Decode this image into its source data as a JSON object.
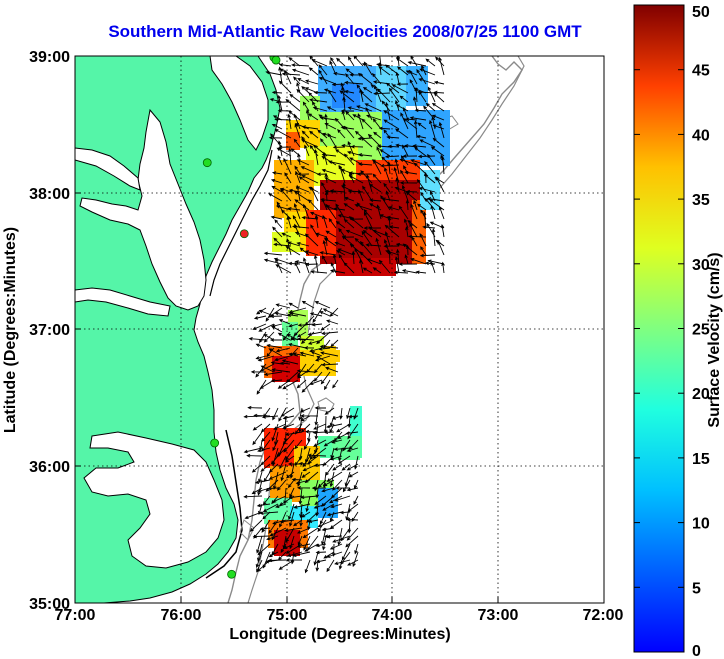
{
  "title": "Southern Mid-Atlantic Raw Velocities 2008/07/25 1100 GMT",
  "axes": {
    "xlabel": "Longitude (Degrees:Minutes)",
    "ylabel": "Latitude (Degrees:Minutes)",
    "xticks": [
      "77:00",
      "76:00",
      "75:00",
      "74:00",
      "73:00",
      "72:00"
    ],
    "yticks": [
      "39:00",
      "38:00",
      "37:00",
      "36:00",
      "35:00"
    ],
    "xlim_deg_west": [
      77,
      72
    ],
    "ylim_deg_north": [
      35,
      39
    ],
    "grid": "dotted"
  },
  "colorbar": {
    "label": "Surface Velocity (cm/s)",
    "ticks": [
      "0",
      "5",
      "10",
      "15",
      "20",
      "25",
      "30",
      "35",
      "40",
      "45",
      "50"
    ],
    "range": [
      0,
      50
    ],
    "colormap": "jet"
  },
  "colors": {
    "title": "#0000ee",
    "land": "#55f5a8",
    "coast": "#000000",
    "bathymetry": "#8a8a8a",
    "arrows": "#000000",
    "stations_green": "#22dd22",
    "station_red": "#ee2222"
  },
  "stations": [
    {
      "lon": -75.12,
      "lat": 38.99,
      "color": "green"
    },
    {
      "lon": -75.1,
      "lat": 38.97,
      "color": "green"
    },
    {
      "lon": -75.75,
      "lat": 38.22,
      "color": "green"
    },
    {
      "lon": -75.4,
      "lat": 37.7,
      "color": "red"
    },
    {
      "lon": -75.68,
      "lat": 36.17,
      "color": "green"
    },
    {
      "lon": -75.52,
      "lat": 35.21,
      "color": "green"
    }
  ]
}
